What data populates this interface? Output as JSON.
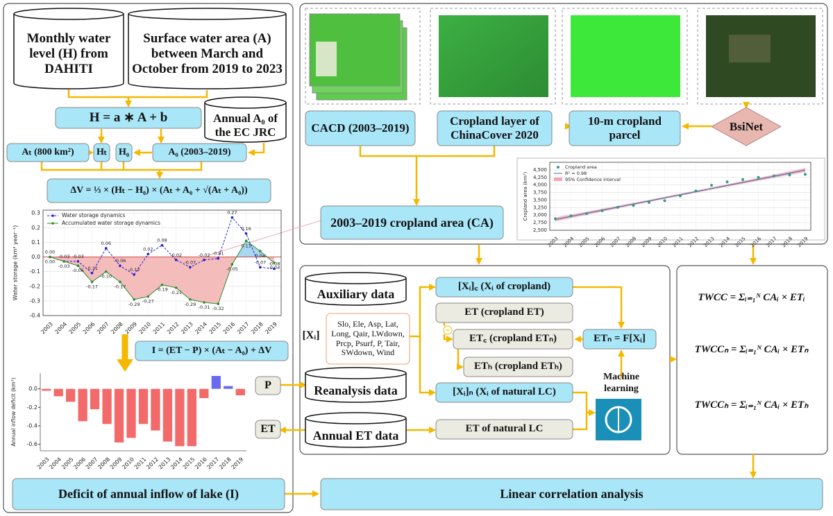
{
  "nodes": [
    {
      "label": "Monthly water level (H) from DAHITI"
    },
    {
      "label": "Surface water area (A) between March and October from 2019 to 2023"
    },
    {
      "label": "H = a ∗ A + b"
    },
    {
      "label": "Annual A₀ of the EC JRC"
    },
    {
      "label": "Aₜ (800 km²)"
    },
    {
      "label": "Hₜ"
    },
    {
      "label": "H₀"
    },
    {
      "label": "A₀ (2003–2019)"
    },
    {
      "label": "ΔV = ⅓ × (Hₜ − H₀) × (Aₜ + A₀ + √(Aₜ + A₀))"
    },
    {
      "label": "I = (ET − P) × (Aₜ − A₀) + ΔV"
    },
    {
      "label": "P"
    },
    {
      "label": "ET"
    },
    {
      "label": "Deficit of annual inflow of lake (I)"
    },
    {
      "label": "CACD (2003–2019)"
    },
    {
      "label": "Cropland layer of ChinaCover 2020"
    },
    {
      "label": "10-m cropland parcel"
    },
    {
      "label": "BsiNet"
    },
    {
      "label": "2003–2019 cropland area (CA)"
    },
    {
      "label": "Auxiliary data"
    },
    {
      "label": "[Xᵢ]"
    },
    {
      "label": "Slo, Ele, Asp, Lat, Long, Qair, LWdown, Prcp, Psurf, P, Tair, SWdown, Wind"
    },
    {
      "label": "Reanalysis data"
    },
    {
      "label": "Annual ET data"
    },
    {
      "label": "[Xᵢ]꜀ (Xᵢ of cropland)"
    },
    {
      "label": "ET (cropland ET)"
    },
    {
      "label": "ET꜀ (cropland ETₙ)"
    },
    {
      "label": "ETₕ (cropland ETₕ)"
    },
    {
      "label": "ETₙ = F[Xᵢ]"
    },
    {
      "label": "Machine learning"
    },
    {
      "label": "[Xᵢ]ₙ (Xᵢ of natural LC)"
    },
    {
      "label": "ET of natural LC"
    },
    {
      "label": "TWCC = Σᵢ₌₁ᴺ CAᵢ × ETᵢ"
    },
    {
      "label": "TWCCₙ = Σᵢ₌₁ᴺ CAᵢ × ETₙ"
    },
    {
      "label": "TWCCₕ = Σᵢ₌₁ᴺ CAᵢ × ETₕ"
    },
    {
      "label": "Linear correlation analysis"
    }
  ],
  "chart_data": [
    {
      "type": "scatter",
      "ylabel": "Cropland area (km²)",
      "categories": [
        "2003",
        "2004",
        "2005",
        "2006",
        "2007",
        "2008",
        "2009",
        "2010",
        "2011",
        "2012",
        "2013",
        "2014",
        "2015",
        "2016",
        "2017",
        "2018",
        "2019"
      ],
      "series": [
        {
          "name": "Cropland area",
          "color": "#2a9d8f",
          "values": [
            2880,
            2980,
            3050,
            3150,
            3260,
            3320,
            3420,
            3480,
            3640,
            3800,
            3990,
            4100,
            4180,
            4250,
            4300,
            4330,
            4350
          ]
        }
      ],
      "fit_label": "R² = 0.98",
      "fit_color": "#4a6fa5",
      "band_label": "95% Confidence interval",
      "band_color": "#f4a6b4",
      "ylim": [
        2500,
        4750
      ],
      "yticks": [
        {
          "value": 2500,
          "label": "2,500"
        },
        {
          "value": 2750,
          "label": "2,750"
        },
        {
          "value": 3000,
          "label": "3,000"
        },
        {
          "value": 3250,
          "label": "3,250"
        },
        {
          "value": 3500,
          "label": "3,500"
        },
        {
          "value": 3750,
          "label": "3,750"
        },
        {
          "value": 4000,
          "label": "4,000"
        },
        {
          "value": 4250,
          "label": "4,250"
        },
        {
          "value": 4500,
          "label": "4,500"
        }
      ],
      "grid": true
    },
    {
      "type": "line",
      "ylabel": "Water storage (km³ year⁻¹)",
      "categories": [
        "2003",
        "2004",
        "2005",
        "2006",
        "2007",
        "2008",
        "2009",
        "2010",
        "2011",
        "2012",
        "2013",
        "2014",
        "2015",
        "2016",
        "2017",
        "2018",
        "2019"
      ],
      "series": [
        {
          "name": "Water storage dynamics",
          "color": "#1f1fd0",
          "values": [
            0,
            -0.03,
            -0.03,
            -0.11,
            0.06,
            -0.06,
            -0.12,
            0.02,
            0.08,
            -0.02,
            -0.07,
            -0.02,
            -0.01,
            0.27,
            0.16,
            -0.07,
            -0.08
          ],
          "value_labels": [
            "0.00",
            "-0.03",
            "-0.03",
            "-0.11",
            "0.06",
            "-0.06",
            "-0.12",
            "0.02",
            "0.08",
            "-0.02",
            "-0.07",
            "-0.02",
            "-0.01",
            "0.27",
            "0.16",
            "-0.07",
            "-0.08"
          ]
        },
        {
          "name": "Accumulated water storage dynamics",
          "color": "#2e8b2e",
          "values": [
            0,
            -0.03,
            -0.06,
            -0.17,
            -0.1,
            -0.17,
            -0.29,
            -0.27,
            -0.19,
            -0.21,
            -0.29,
            -0.31,
            -0.32,
            -0.05,
            0.11,
            0.04,
            -0.04
          ],
          "value_labels": [
            "0.00",
            "-0.03",
            "-0.06",
            "-0.17",
            "-0.10",
            "-0.17",
            "-0.29",
            "-0.27",
            "-0.19",
            "-0.21",
            "-0.29",
            "-0.31",
            "-0.32",
            "-0.05",
            "0.11",
            "0.04",
            "-0.04"
          ]
        }
      ],
      "area_colors": {
        "positive": "#a9d6f0",
        "negative": "#f5bcbc"
      },
      "ylim": [
        -0.4,
        0.32
      ],
      "yticks": [
        -0.4,
        -0.3,
        -0.2,
        -0.1,
        {
          "value": 0,
          "label": "0.0"
        },
        0.1,
        0.2,
        0.3
      ],
      "grid": true,
      "legend": "upper left"
    },
    {
      "type": "bar",
      "ylabel": "Annual inflow deficit (km³)",
      "categories": [
        "2003",
        "2004",
        "2005",
        "2006",
        "2007",
        "2008",
        "2009",
        "2010",
        "2011",
        "2012",
        "2013",
        "2014",
        "2015",
        "2016",
        "2017",
        "2018",
        "2019"
      ],
      "values": [
        -0.02,
        -0.08,
        -0.14,
        -0.35,
        -0.22,
        -0.38,
        -0.58,
        -0.53,
        -0.38,
        -0.45,
        -0.57,
        -0.62,
        -0.62,
        -0.1,
        0.14,
        0.03,
        -0.07
      ],
      "color": "#f26a6a",
      "positive_color": "#6a6af0",
      "ylim": [
        -0.67,
        0.17
      ],
      "yticks": [
        -0.6,
        -0.4,
        -0.2,
        {
          "value": 0,
          "label": "0.0"
        }
      ]
    }
  ]
}
